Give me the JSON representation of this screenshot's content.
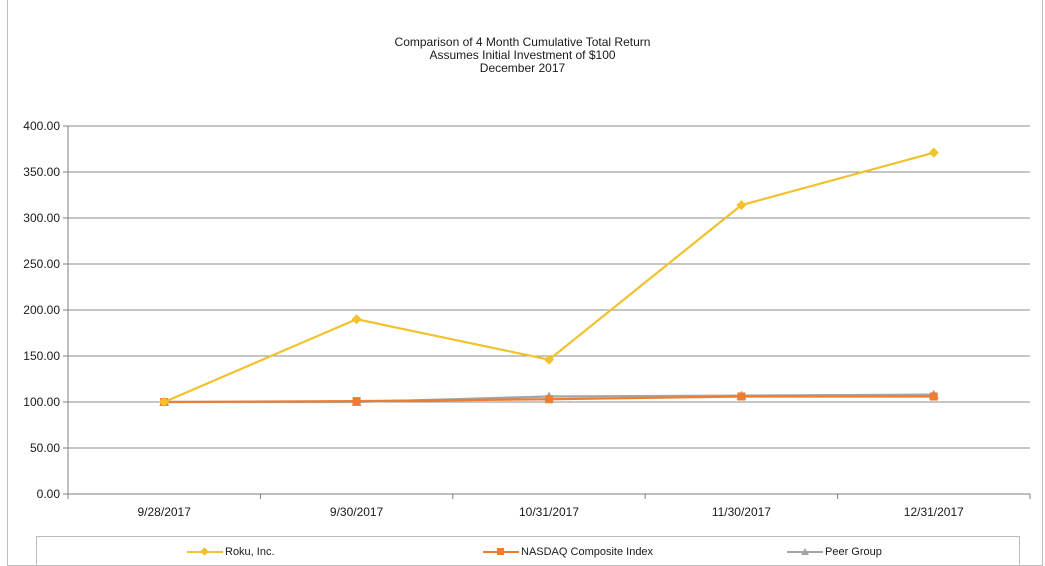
{
  "chart_data": {
    "type": "line",
    "title": "Comparison of 4 Month Cumulative Total Return",
    "subtitle_lines": [
      "Assumes Initial Investment of $100",
      "December 2017"
    ],
    "xlabel": "",
    "ylabel": "",
    "categories": [
      "9/28/2017",
      "9/30/2017",
      "10/31/2017",
      "11/30/2017",
      "12/31/2017"
    ],
    "y_ticks": [
      "0.00",
      "50.00",
      "100.00",
      "150.00",
      "200.00",
      "250.00",
      "300.00",
      "350.00",
      "400.00"
    ],
    "ylim": [
      0,
      400
    ],
    "grid": true,
    "legend_position": "bottom",
    "series": [
      {
        "name": "Roku, Inc.",
        "color": "#f2c12e",
        "marker": "diamond",
        "values": [
          100.0,
          190.0,
          146.0,
          314.0,
          371.0
        ]
      },
      {
        "name": "NASDAQ Composite Index",
        "color": "#ed7d31",
        "marker": "square",
        "values": [
          100.0,
          101.0,
          103.0,
          106.0,
          106.0
        ]
      },
      {
        "name": "Peer Group",
        "color": "#a5a5a5",
        "marker": "triangle",
        "values": [
          100.0,
          100.0,
          106.0,
          107.0,
          108.0
        ]
      }
    ]
  }
}
